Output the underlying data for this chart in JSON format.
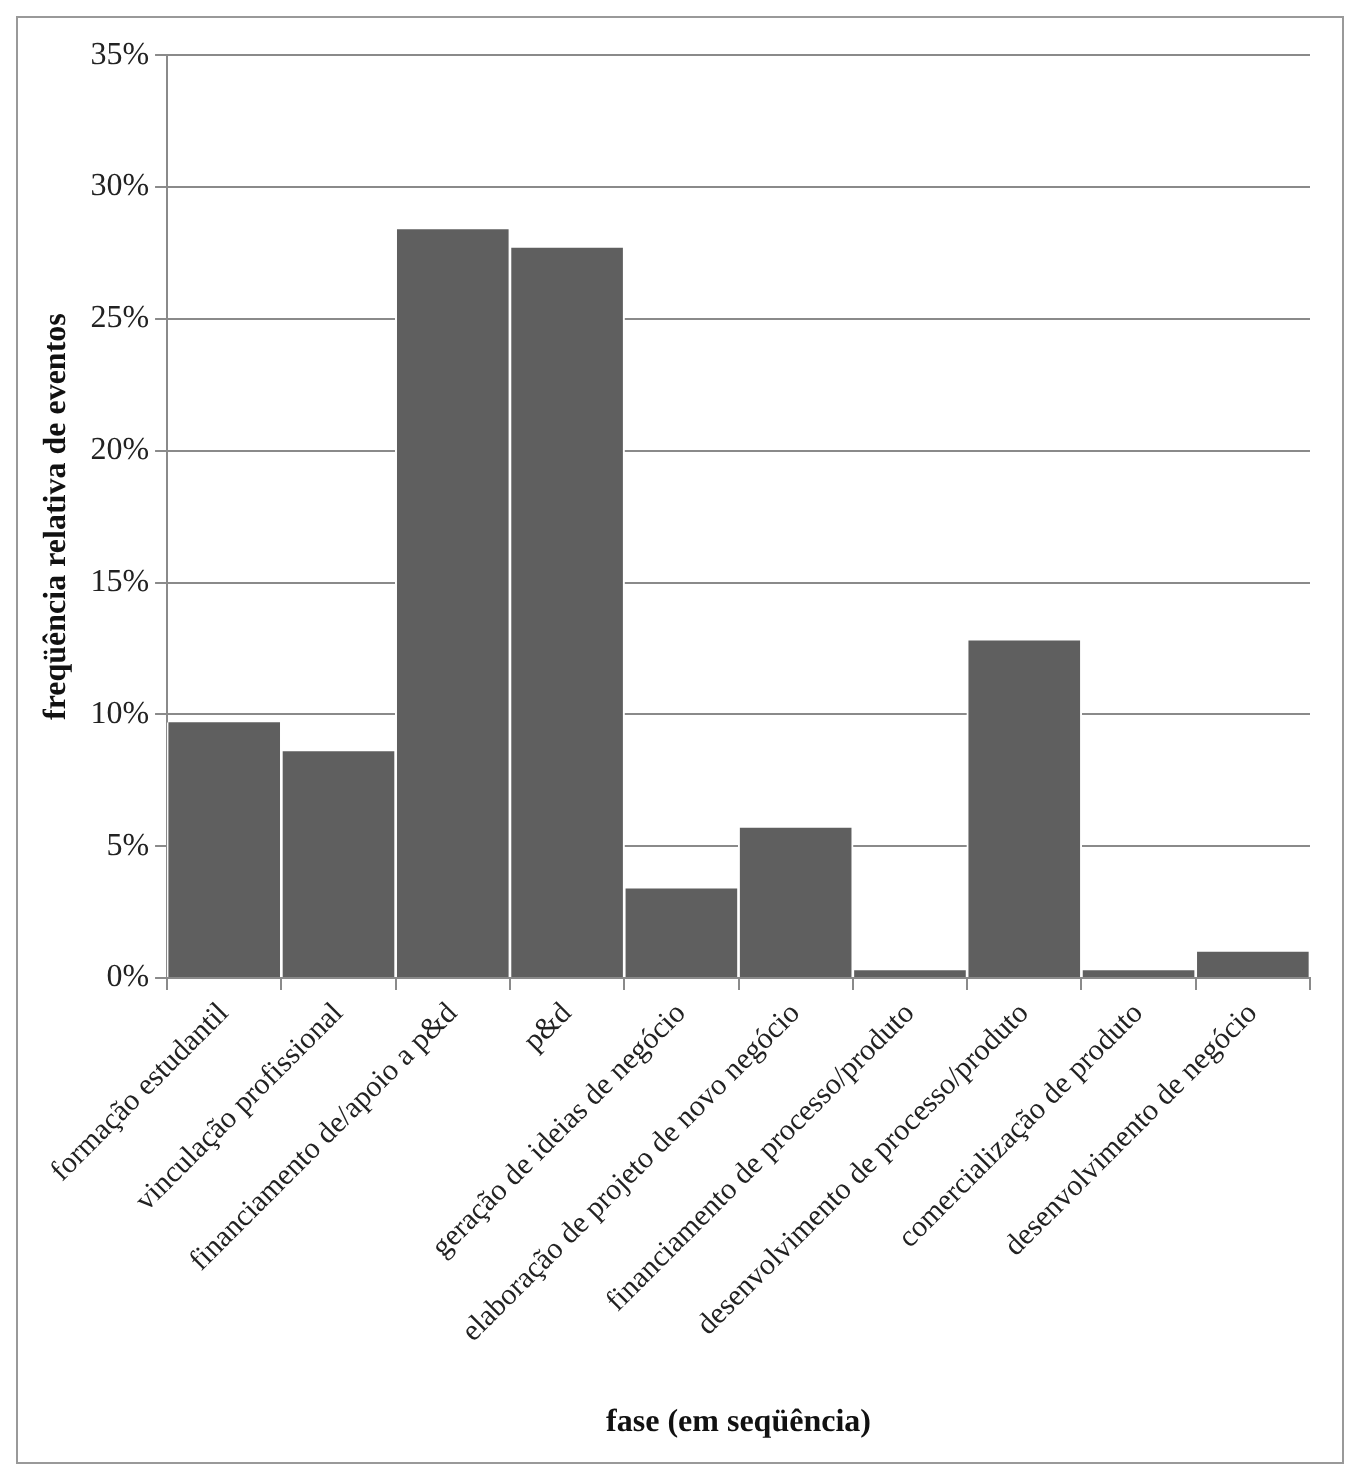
{
  "chart_data": {
    "type": "bar",
    "xlabel": "fase (em seqüência)",
    "ylabel": "freqüência relativa de eventos",
    "categories": [
      "formação estudantil",
      "vinculação profissional",
      "financiamento de/apoio a p&d",
      "p&d",
      "geração de ideias de negócio",
      "elaboração de projeto de novo negócio",
      "financiamento de processo/produto",
      "desenvolvimento de processo/produto",
      "comercialização de produto",
      "desenvolvimento de negócio"
    ],
    "values": [
      9.7,
      8.6,
      28.4,
      27.7,
      3.4,
      5.7,
      0.3,
      12.8,
      0.3,
      1.0
    ],
    "color": "#5f5f5f",
    "ylim": [
      0,
      35
    ],
    "yticks": [
      {
        "value": 0,
        "label": "0%"
      },
      {
        "value": 5,
        "label": "5%"
      },
      {
        "value": 10,
        "label": "10%"
      },
      {
        "value": 15,
        "label": "15%"
      },
      {
        "value": 20,
        "label": "20%"
      },
      {
        "value": 25,
        "label": "25%"
      },
      {
        "value": 30,
        "label": "30%"
      },
      {
        "value": 35,
        "label": "35%"
      }
    ],
    "grid": "y"
  }
}
